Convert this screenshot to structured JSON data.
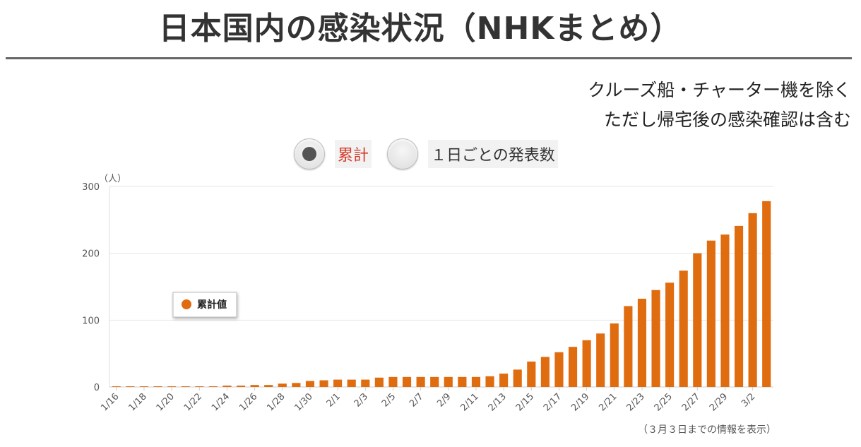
{
  "header": {
    "title": "日本国内の感染状況（NHKまとめ）",
    "note_line1": "クルーズ船・チャーター機を除く",
    "note_line2": "ただし帰宅後の感染確認は含む"
  },
  "toggles": [
    {
      "label": "累計",
      "selected": true
    },
    {
      "label": "１日ごとの発表数",
      "selected": false
    }
  ],
  "footnote": "（３月３日までの情報を表示）",
  "colors": {
    "bar": "#e06c10",
    "accent_red": "#d63a2a"
  },
  "chart_data": {
    "type": "bar",
    "ylabel": "（人）",
    "ylim": [
      0,
      300
    ],
    "yticks": [
      0,
      100,
      200,
      300
    ],
    "legend": {
      "label": "累計値",
      "placement": "left-middle"
    },
    "grid": true,
    "categories": [
      "1/16",
      "1/17",
      "1/18",
      "1/19",
      "1/20",
      "1/21",
      "1/22",
      "1/23",
      "1/24",
      "1/25",
      "1/26",
      "1/27",
      "1/28",
      "1/29",
      "1/30",
      "1/31",
      "2/1",
      "2/2",
      "2/3",
      "2/4",
      "2/5",
      "2/6",
      "2/7",
      "2/8",
      "2/9",
      "2/10",
      "2/11",
      "2/12",
      "2/13",
      "2/14",
      "2/15",
      "2/16",
      "2/17",
      "2/18",
      "2/19",
      "2/20",
      "2/21",
      "2/22",
      "2/23",
      "2/24",
      "2/25",
      "2/26",
      "2/27",
      "2/28",
      "2/29",
      "3/1",
      "3/2",
      "3/3"
    ],
    "xtick_labels": [
      "1/16",
      "1/18",
      "1/20",
      "1/22",
      "1/24",
      "1/26",
      "1/28",
      "1/30",
      "2/1",
      "2/3",
      "2/5",
      "2/7",
      "2/9",
      "2/11",
      "2/13",
      "2/15",
      "2/17",
      "2/19",
      "2/21",
      "2/23",
      "2/25",
      "2/27",
      "2/29",
      "3/2"
    ],
    "series": [
      {
        "name": "累計値",
        "values": [
          1,
          1,
          1,
          1,
          1,
          1,
          1,
          1,
          2,
          2,
          3,
          3,
          5,
          6,
          9,
          10,
          11,
          11,
          11,
          14,
          15,
          15,
          15,
          15,
          15,
          15,
          15,
          16,
          20,
          26,
          38,
          45,
          52,
          60,
          70,
          80,
          95,
          121,
          132,
          145,
          156,
          174,
          200,
          219,
          228,
          241,
          260,
          278
        ]
      }
    ]
  }
}
